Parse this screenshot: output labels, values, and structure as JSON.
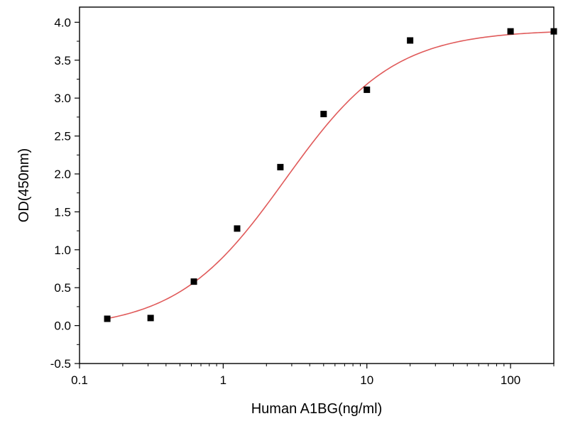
{
  "chart_data": {
    "type": "scatter",
    "xlabel": "Human A1BG(ng/ml)",
    "ylabel": "OD(450nm)",
    "xscale": "log",
    "xlim": [
      0.1,
      200
    ],
    "ylim": [
      -0.5,
      4.2
    ],
    "x_ticks": [
      0.1,
      1,
      10,
      100
    ],
    "x_tick_labels": [
      "0.1",
      "1",
      "10",
      "100"
    ],
    "y_ticks": [
      -0.5,
      0.0,
      0.5,
      1.0,
      1.5,
      2.0,
      2.5,
      3.0,
      3.5,
      4.0
    ],
    "y_tick_labels": [
      "-0.5",
      "0.0",
      "0.5",
      "1.0",
      "1.5",
      "2.0",
      "2.5",
      "3.0",
      "3.5",
      "4.0"
    ],
    "grid": false,
    "series": [
      {
        "kind": "points",
        "marker": "square",
        "color": "#000000",
        "points": [
          {
            "x": 0.156,
            "y": 0.09
          },
          {
            "x": 0.3125,
            "y": 0.1
          },
          {
            "x": 0.625,
            "y": 0.58
          },
          {
            "x": 1.25,
            "y": 1.28
          },
          {
            "x": 2.5,
            "y": 2.09
          },
          {
            "x": 5,
            "y": 2.79
          },
          {
            "x": 10,
            "y": 3.11
          },
          {
            "x": 20,
            "y": 3.76
          },
          {
            "x": 100,
            "y": 3.88
          },
          {
            "x": 200,
            "y": 3.88
          }
        ]
      },
      {
        "kind": "fit-curve",
        "color": "#e05a5a",
        "model": "4PL",
        "params": {
          "bottom": -0.05,
          "top": 3.9,
          "ec50": 2.7,
          "hill": 1.15
        }
      }
    ]
  }
}
